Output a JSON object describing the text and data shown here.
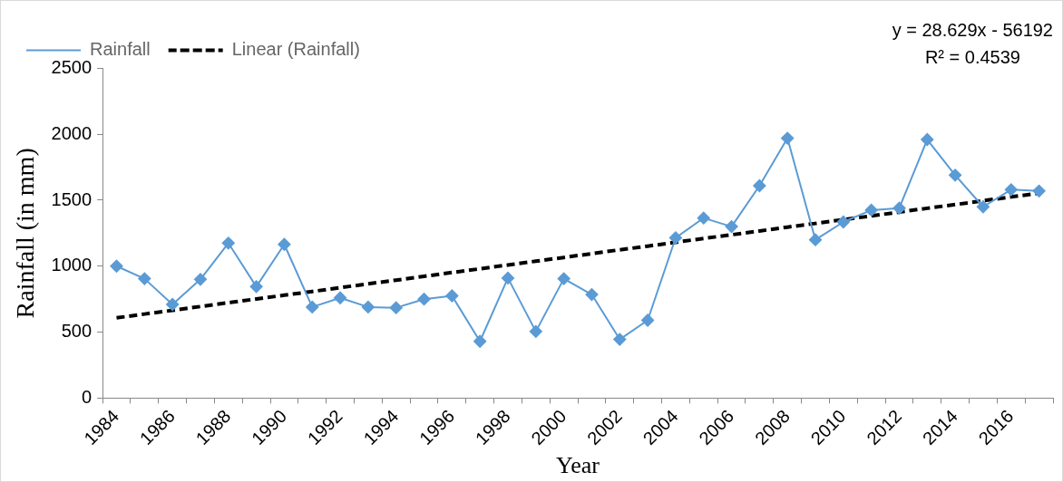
{
  "chart_data": {
    "type": "line",
    "xlabel": "Year",
    "ylabel": "Rainfall (in mm)",
    "categories": [
      "1984",
      null,
      "1986",
      null,
      "1988",
      null,
      "1990",
      null,
      "1992",
      null,
      "1994",
      null,
      "1996",
      null,
      "1998",
      null,
      "2000",
      null,
      "2002",
      null,
      "2004",
      null,
      "2006",
      null,
      "2008",
      null,
      "2010",
      null,
      "2012",
      null,
      "2014",
      null,
      "2016",
      null
    ],
    "series": [
      {
        "name": "Rainfall",
        "color": "#5b9bd5",
        "marker": "diamond",
        "line_style": "solid",
        "values": [
          1000,
          905,
          710,
          900,
          1175,
          845,
          1165,
          690,
          760,
          690,
          685,
          750,
          775,
          430,
          910,
          505,
          905,
          785,
          445,
          590,
          1215,
          1365,
          1300,
          1610,
          1970,
          1200,
          1335,
          1425,
          1440,
          1960,
          1690,
          1450,
          1580,
          1570
        ]
      },
      {
        "name": "Linear (Rainfall)",
        "color": "#000000",
        "marker": "none",
        "line_style": "dashed",
        "values": [
          608,
          637,
          665,
          694,
          723,
          751,
          780,
          808,
          837,
          866,
          894,
          923,
          952,
          980,
          1009,
          1038,
          1066,
          1095,
          1124,
          1152,
          1181,
          1210,
          1238,
          1267,
          1296,
          1324,
          1353,
          1381,
          1410,
          1439,
          1467,
          1496,
          1525,
          1553
        ]
      }
    ],
    "ylim": [
      0,
      2500
    ],
    "yticks": [
      0,
      500,
      1000,
      1500,
      2000,
      2500
    ],
    "grid": false,
    "legend": "top",
    "annotations": [
      "y = 28.629x - 56192",
      "R² = 0.4539"
    ]
  }
}
